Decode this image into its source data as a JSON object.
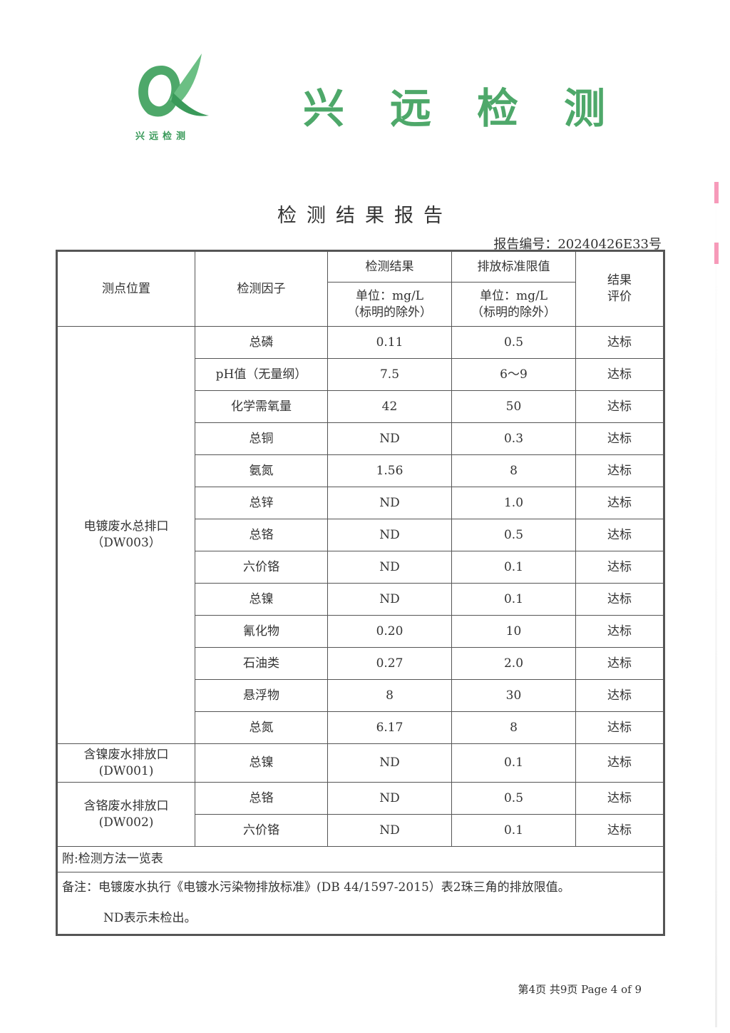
{
  "brand": {
    "name": "兴远检测",
    "small_name": "兴远检测",
    "color": "#4ea86a"
  },
  "title": "检测结果报告",
  "report_no": "报告编号：20240426E33号",
  "header": {
    "location": "测点位置",
    "factor": "检测因子",
    "result": "检测结果",
    "result_unit": "单位：mg/L",
    "result_note": "（标明的除外）",
    "limit": "排放标准限值",
    "limit_unit": "单位：mg/L",
    "limit_note": "（标明的除外）",
    "evaluation_1": "结果",
    "evaluation_2": "评价"
  },
  "groups": [
    {
      "location": "电镀废水总排口",
      "code": "（DW003）",
      "rows": [
        {
          "factor": "总磷",
          "result": "0.11",
          "limit": "0.5",
          "eval": "达标"
        },
        {
          "factor": "pH值（无量纲）",
          "result": "7.5",
          "limit": "6～9",
          "eval": "达标"
        },
        {
          "factor": "化学需氧量",
          "result": "42",
          "limit": "50",
          "eval": "达标"
        },
        {
          "factor": "总铜",
          "result": "ND",
          "limit": "0.3",
          "eval": "达标"
        },
        {
          "factor": "氨氮",
          "result": "1.56",
          "limit": "8",
          "eval": "达标"
        },
        {
          "factor": "总锌",
          "result": "ND",
          "limit": "1.0",
          "eval": "达标"
        },
        {
          "factor": "总铬",
          "result": "ND",
          "limit": "0.5",
          "eval": "达标"
        },
        {
          "factor": "六价铬",
          "result": "ND",
          "limit": "0.1",
          "eval": "达标"
        },
        {
          "factor": "总镍",
          "result": "ND",
          "limit": "0.1",
          "eval": "达标"
        },
        {
          "factor": "氰化物",
          "result": "0.20",
          "limit": "10",
          "eval": "达标"
        },
        {
          "factor": "石油类",
          "result": "0.27",
          "limit": "2.0",
          "eval": "达标"
        },
        {
          "factor": "悬浮物",
          "result": "8",
          "limit": "30",
          "eval": "达标"
        },
        {
          "factor": "总氮",
          "result": "6.17",
          "limit": "8",
          "eval": "达标"
        }
      ]
    },
    {
      "location": "含镍废水排放口",
      "code": "(DW001)",
      "rows": [
        {
          "factor": "总镍",
          "result": "ND",
          "limit": "0.1",
          "eval": "达标"
        }
      ]
    },
    {
      "location": "含铬废水排放口",
      "code": "(DW002)",
      "rows": [
        {
          "factor": "总铬",
          "result": "ND",
          "limit": "0.5",
          "eval": "达标"
        },
        {
          "factor": "六价铬",
          "result": "ND",
          "limit": "0.1",
          "eval": "达标"
        }
      ]
    }
  ],
  "appendix": "附:检测方法一览表",
  "remark_1": "备注：电镀废水执行《电镀水污染物排放标准》(DB 44/1597-2015）表2珠三角的排放限值。",
  "remark_2": "ND表示未检出。",
  "footer": "第4页 共9页 Page 4 of 9"
}
